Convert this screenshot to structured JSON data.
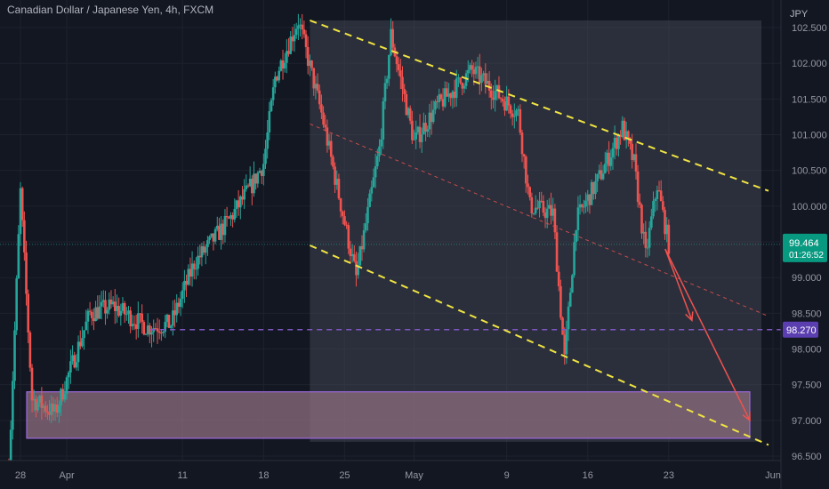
{
  "header": {
    "title": "Canadian Dollar / Japanese Yen, 4h, FXCM"
  },
  "colors": {
    "background": "#131722",
    "up": "#26a69a",
    "down": "#ef5350",
    "channel_line": "#f0e442",
    "channel_fill": "#2a2e39",
    "support_line": "#7e57c2",
    "zone_fill": "#8d6e7f",
    "zone_border": "#9c6ade",
    "forecast_arrow": "#ef5350"
  },
  "chart_data": {
    "type": "candlestick",
    "symbol": "CADJPY",
    "timeframe": "4h",
    "unit_label": "JPY",
    "ylim": [
      96.3,
      102.6
    ],
    "yticks": [
      "102.500",
      "102.000",
      "101.500",
      "101.000",
      "100.500",
      "100.000",
      "99.500",
      "99.000",
      "98.500",
      "98.000",
      "97.500",
      "97.000",
      "96.500"
    ],
    "x_days": [
      "Mar 27",
      "Jun 1"
    ],
    "xticks": [
      {
        "label": "28",
        "day": "Mar 28"
      },
      {
        "label": "Apr",
        "day": "Apr 1"
      },
      {
        "label": "11",
        "day": "Apr 11"
      },
      {
        "label": "18",
        "day": "Apr 18"
      },
      {
        "label": "25",
        "day": "Apr 25"
      },
      {
        "label": "May",
        "day": "May 1"
      },
      {
        "label": "9",
        "day": "May 9"
      },
      {
        "label": "16",
        "day": "May 16"
      },
      {
        "label": "23",
        "day": "May 23"
      },
      {
        "label": "Jun",
        "day": "Jun 1"
      }
    ],
    "price_path": [
      {
        "day": "Mar 27",
        "price": 96.3
      },
      {
        "day": "Mar 28",
        "price": 100.2
      },
      {
        "day": "Mar 29",
        "price": 97.3
      },
      {
        "day": "Mar 31",
        "price": 97.1
      },
      {
        "day": "Apr 3",
        "price": 98.5
      },
      {
        "day": "Apr 5",
        "price": 98.6
      },
      {
        "day": "Apr 8",
        "price": 98.3
      },
      {
        "day": "Apr 10",
        "price": 98.35
      },
      {
        "day": "Apr 12",
        "price": 99.2
      },
      {
        "day": "Apr 15",
        "price": 99.8
      },
      {
        "day": "Apr 17",
        "price": 100.3
      },
      {
        "day": "Apr 18",
        "price": 100.6
      },
      {
        "day": "Apr 19",
        "price": 101.8
      },
      {
        "day": "Apr 21",
        "price": 102.6
      },
      {
        "day": "Apr 23",
        "price": 101.3
      },
      {
        "day": "Apr 26",
        "price": 99.0
      },
      {
        "day": "Apr 28",
        "price": 100.8
      },
      {
        "day": "Apr 29",
        "price": 102.4
      },
      {
        "day": "May 1",
        "price": 100.9
      },
      {
        "day": "May 3",
        "price": 101.4
      },
      {
        "day": "May 6",
        "price": 101.9
      },
      {
        "day": "May 8",
        "price": 101.6
      },
      {
        "day": "May 10",
        "price": 101.3
      },
      {
        "day": "May 11",
        "price": 100.0
      },
      {
        "day": "May 13",
        "price": 99.9
      },
      {
        "day": "May 14",
        "price": 97.85
      },
      {
        "day": "May 15",
        "price": 99.8
      },
      {
        "day": "May 17",
        "price": 100.4
      },
      {
        "day": "May 19",
        "price": 101.1
      },
      {
        "day": "May 20",
        "price": 100.6
      },
      {
        "day": "May 21",
        "price": 99.3
      },
      {
        "day": "May 22",
        "price": 100.3
      },
      {
        "day": "May 23",
        "price": 99.464
      }
    ],
    "last_price": {
      "value": "99.464",
      "countdown": "01:26:52"
    },
    "support_level": {
      "value": "98.270"
    },
    "channel": {
      "upper": [
        {
          "day": "Apr 22",
          "price": 102.6
        },
        {
          "day": "May 31",
          "price": 100.25
        }
      ],
      "middle": [
        {
          "day": "Apr 22",
          "price": 101.15
        },
        {
          "day": "May 31",
          "price": 98.5
        }
      ],
      "lower": [
        {
          "day": "Apr 22",
          "price": 99.45
        },
        {
          "day": "May 31",
          "price": 96.7
        }
      ],
      "box": {
        "from_day": "Apr 22",
        "to_day": "May 31"
      }
    },
    "demand_zone": {
      "from_day": "Mar 27",
      "to_day": "May 30",
      "price_top": 97.4,
      "price_bottom": 96.75
    },
    "arrows": [
      {
        "from": {
          "day": "May 23",
          "price": 99.4
        },
        "to": {
          "day": "May 25",
          "price": 98.4
        }
      },
      {
        "from": {
          "day": "May 23",
          "price": 99.4
        },
        "to": {
          "day": "May 30",
          "price": 97.0
        }
      }
    ]
  }
}
